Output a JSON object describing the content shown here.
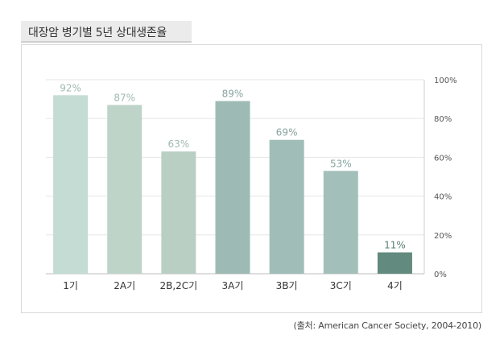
{
  "title": "대장암 병기별 5년 상대생존율",
  "source": "(출처: American Cancer Society, 2004-2010)",
  "chart_data": {
    "type": "bar",
    "categories": [
      "1기",
      "2A기",
      "2B,2C기",
      "3A기",
      "3B기",
      "3C기",
      "4기"
    ],
    "values": [
      92,
      87,
      63,
      89,
      69,
      53,
      11
    ],
    "data_labels": [
      "92%",
      "87%",
      "63%",
      "89%",
      "69%",
      "53%",
      "11%"
    ],
    "yticks": [
      0,
      20,
      40,
      60,
      80,
      100
    ],
    "ytick_labels": [
      "0%",
      "20%",
      "40%",
      "60%",
      "80%",
      "100%"
    ],
    "ylim": [
      0,
      100
    ],
    "yaxis_side": "right",
    "grid": true,
    "bar_colors": [
      "#c4dcd3",
      "#bed4c9",
      "#b9cfc4",
      "#9ebab4",
      "#a1bdb7",
      "#a3bfb9",
      "#628a7e"
    ],
    "label_colors": [
      "#9fb9af",
      "#9fb9af",
      "#9fb9af",
      "#86a39c",
      "#86a39c",
      "#86a39c",
      "#5e8076"
    ]
  }
}
